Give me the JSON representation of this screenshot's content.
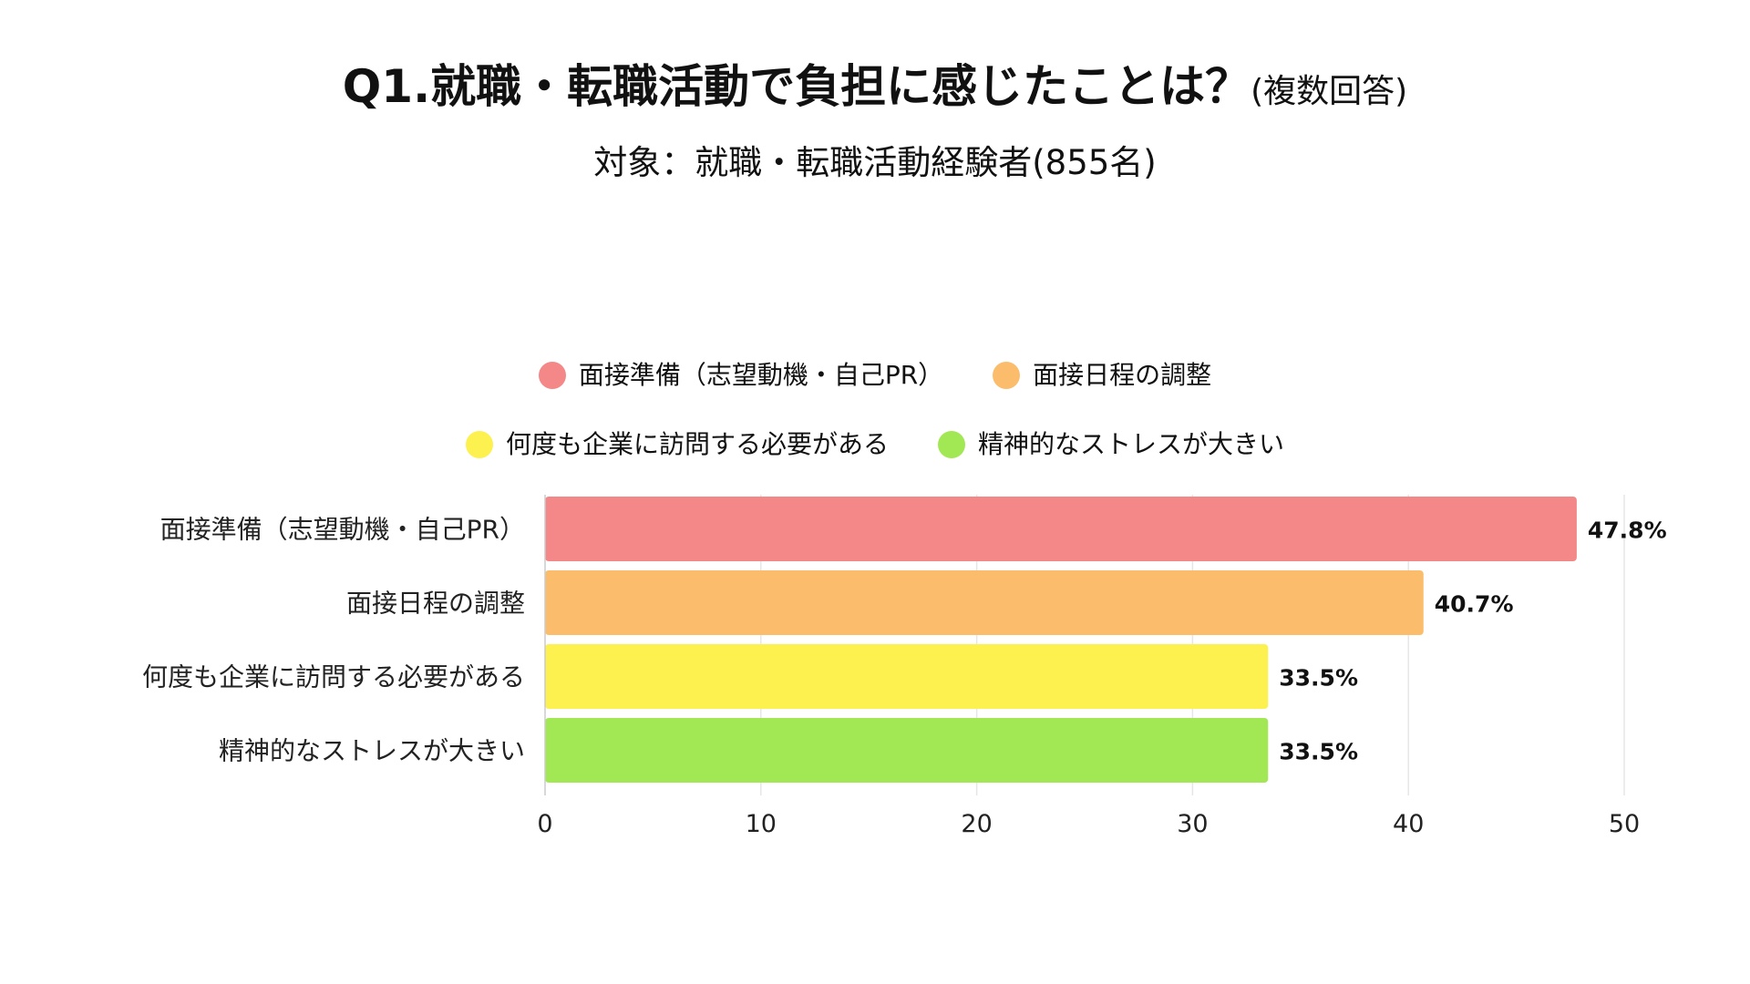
{
  "chart_data": {
    "type": "bar",
    "orientation": "horizontal",
    "title": "Q1.就職・転職活動で負担に感じたことは？",
    "title_suffix": "(複数回答)",
    "subtitle": "対象：就職・転職活動経験者(855名)",
    "categories": [
      "面接準備（志望動機・自己PR）",
      "面接日程の調整",
      "何度も企業に訪問する必要がある",
      "精神的なストレスが大きい"
    ],
    "values": [
      47.8,
      40.7,
      33.5,
      33.5
    ],
    "value_labels": [
      "47.8%",
      "40.7%",
      "33.5%",
      "33.5%"
    ],
    "colors": [
      "#f48787",
      "#fbbd6b",
      "#fdf150",
      "#a2e854"
    ],
    "xlim": [
      0,
      50
    ],
    "xticks": [
      0,
      10,
      20,
      30,
      40,
      50
    ],
    "grid": "vertical",
    "legend_position": "top",
    "legend": [
      "面接準備（志望動機・自己PR）",
      "面接日程の調整",
      "何度も企業に訪問する必要がある",
      "精神的なストレスが大きい"
    ]
  }
}
